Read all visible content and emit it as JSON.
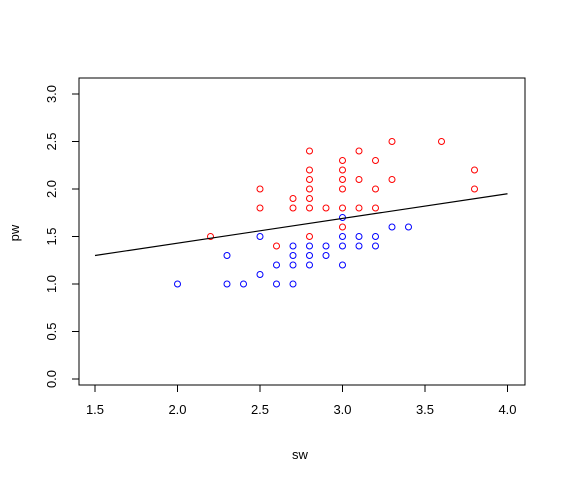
{
  "chart_data": {
    "type": "scatter",
    "title": "",
    "xlabel": "sw",
    "ylabel": "pw",
    "xlim": [
      1.4,
      4.1
    ],
    "ylim": [
      -0.05,
      3.1
    ],
    "x_ticks": [
      "1.5",
      "2.0",
      "2.5",
      "3.0",
      "3.5",
      "4.0"
    ],
    "y_ticks": [
      "0.0",
      "0.5",
      "1.0",
      "1.5",
      "2.0",
      "2.5",
      "3.0"
    ],
    "colors": {
      "red_series": "#ff0000",
      "blue_series": "#0000ff",
      "line": "#000000"
    },
    "series": [
      {
        "color": "#ff0000",
        "points": [
          [
            2.2,
            1.5
          ],
          [
            2.5,
            2.0
          ],
          [
            2.5,
            1.8
          ],
          [
            2.6,
            1.4
          ],
          [
            2.7,
            1.9
          ],
          [
            2.7,
            1.8
          ],
          [
            2.8,
            2.4
          ],
          [
            2.8,
            2.2
          ],
          [
            2.8,
            2.1
          ],
          [
            2.8,
            2.0
          ],
          [
            2.8,
            1.9
          ],
          [
            2.8,
            1.8
          ],
          [
            2.8,
            1.5
          ],
          [
            2.9,
            1.8
          ],
          [
            3.0,
            2.3
          ],
          [
            3.0,
            2.2
          ],
          [
            3.0,
            2.1
          ],
          [
            3.0,
            2.0
          ],
          [
            3.0,
            1.8
          ],
          [
            3.0,
            1.6
          ],
          [
            3.1,
            2.4
          ],
          [
            3.1,
            2.1
          ],
          [
            3.1,
            1.8
          ],
          [
            3.2,
            2.3
          ],
          [
            3.2,
            2.0
          ],
          [
            3.2,
            1.8
          ],
          [
            3.3,
            2.5
          ],
          [
            3.3,
            2.1
          ],
          [
            3.6,
            2.5
          ],
          [
            3.8,
            2.2
          ],
          [
            3.8,
            2.0
          ]
        ]
      },
      {
        "color": "#0000ff",
        "points": [
          [
            2.0,
            1.0
          ],
          [
            2.3,
            1.3
          ],
          [
            2.3,
            1.0
          ],
          [
            2.4,
            1.0
          ],
          [
            2.5,
            1.5
          ],
          [
            2.5,
            1.1
          ],
          [
            2.6,
            1.2
          ],
          [
            2.6,
            1.0
          ],
          [
            2.7,
            1.4
          ],
          [
            2.7,
            1.3
          ],
          [
            2.7,
            1.2
          ],
          [
            2.7,
            1.0
          ],
          [
            2.8,
            1.4
          ],
          [
            2.8,
            1.3
          ],
          [
            2.8,
            1.2
          ],
          [
            2.9,
            1.4
          ],
          [
            2.9,
            1.3
          ],
          [
            3.0,
            1.7
          ],
          [
            3.0,
            1.5
          ],
          [
            3.0,
            1.4
          ],
          [
            3.0,
            1.2
          ],
          [
            3.1,
            1.5
          ],
          [
            3.1,
            1.4
          ],
          [
            3.2,
            1.5
          ],
          [
            3.2,
            1.4
          ],
          [
            3.3,
            1.6
          ],
          [
            3.4,
            1.6
          ]
        ]
      }
    ],
    "regression_line": {
      "x": [
        1.5,
        4.0
      ],
      "y": [
        1.3,
        1.95
      ]
    },
    "grid": false,
    "legend": "none"
  }
}
